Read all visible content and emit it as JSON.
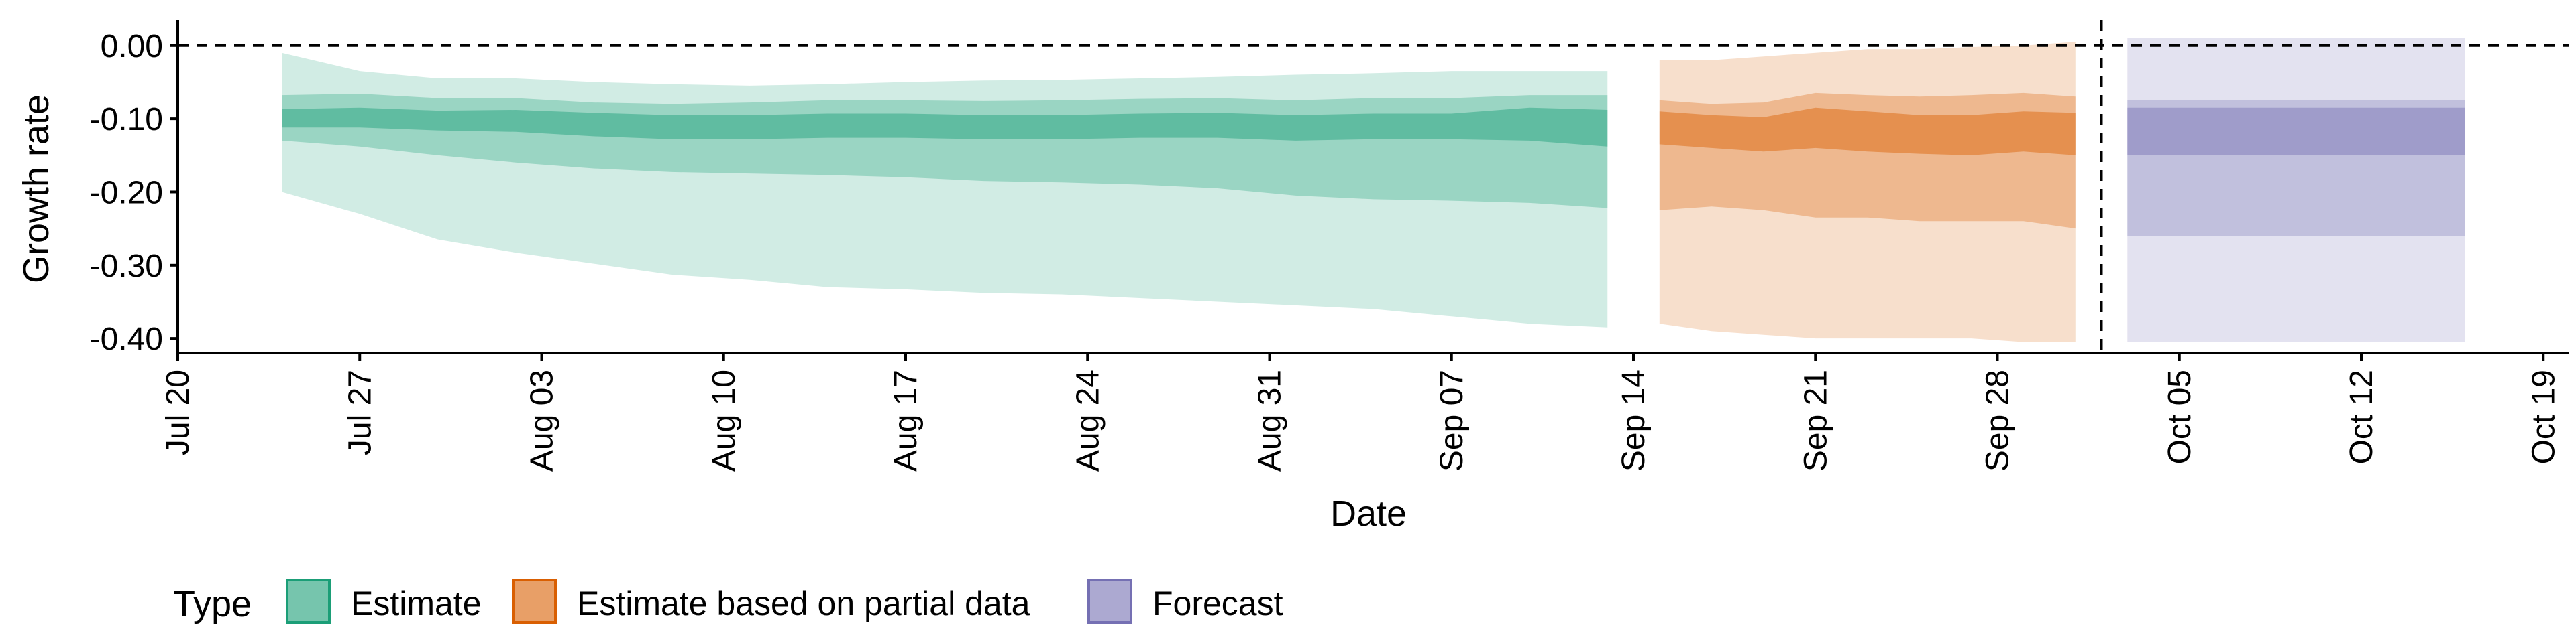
{
  "chart_data": {
    "type": "area",
    "title": "",
    "xlabel": "Date",
    "ylabel": "Growth rate",
    "ylim": [
      -0.42,
      0.03
    ],
    "xlim": [
      "2020-07-20",
      "2020-10-20"
    ],
    "x_ticks": [
      "Jul 20",
      "Jul 27",
      "Aug 03",
      "Aug 10",
      "Aug 17",
      "Aug 24",
      "Aug 31",
      "Sep 07",
      "Sep 14",
      "Sep 21",
      "Sep 28",
      "Oct 05",
      "Oct 12",
      "Oct 19"
    ],
    "y_ticks": [
      "0.00",
      "-0.10",
      "-0.20",
      "-0.30",
      "-0.40"
    ],
    "reference_lines": {
      "horizontal_y": 0.0,
      "vertical_x": "2020-10-02"
    },
    "legend": {
      "title": "Type",
      "position": "bottom-left",
      "entries": [
        "Estimate",
        "Estimate based on partial data",
        "Forecast"
      ]
    },
    "colors": {
      "Estimate": "#1b9e77",
      "Estimate based on partial data": "#d95f02",
      "Forecast": "#7570b3"
    },
    "grid": false,
    "series": [
      {
        "name": "Estimate",
        "color": "#1b9e77",
        "dates": [
          "2020-07-24",
          "2020-07-27",
          "2020-07-30",
          "2020-08-02",
          "2020-08-05",
          "2020-08-08",
          "2020-08-11",
          "2020-08-14",
          "2020-08-17",
          "2020-08-20",
          "2020-08-23",
          "2020-08-26",
          "2020-08-29",
          "2020-09-01",
          "2020-09-04",
          "2020-09-07",
          "2020-09-10",
          "2020-09-13"
        ],
        "median": [
          -0.1,
          -0.098,
          -0.102,
          -0.1,
          -0.105,
          -0.11,
          -0.11,
          -0.108,
          -0.107,
          -0.11,
          -0.11,
          -0.108,
          -0.106,
          -0.11,
          -0.108,
          -0.108,
          -0.107,
          -0.112
        ],
        "q25": [
          -0.087,
          -0.085,
          -0.089,
          -0.088,
          -0.092,
          -0.095,
          -0.095,
          -0.093,
          -0.093,
          -0.095,
          -0.095,
          -0.093,
          -0.092,
          -0.095,
          -0.093,
          -0.093,
          -0.085,
          -0.088
        ],
        "q75": [
          -0.112,
          -0.112,
          -0.116,
          -0.118,
          -0.124,
          -0.128,
          -0.128,
          -0.126,
          -0.126,
          -0.128,
          -0.128,
          -0.126,
          -0.126,
          -0.13,
          -0.128,
          -0.128,
          -0.13,
          -0.138
        ],
        "q10": [
          -0.068,
          -0.066,
          -0.072,
          -0.072,
          -0.078,
          -0.08,
          -0.078,
          -0.075,
          -0.075,
          -0.076,
          -0.075,
          -0.073,
          -0.072,
          -0.075,
          -0.072,
          -0.072,
          -0.068,
          -0.068
        ],
        "q90": [
          -0.13,
          -0.138,
          -0.15,
          -0.16,
          -0.168,
          -0.173,
          -0.175,
          -0.177,
          -0.18,
          -0.185,
          -0.187,
          -0.19,
          -0.195,
          -0.205,
          -0.21,
          -0.212,
          -0.215,
          -0.222
        ],
        "q5": [
          -0.01,
          -0.035,
          -0.045,
          -0.045,
          -0.05,
          -0.053,
          -0.055,
          -0.053,
          -0.05,
          -0.048,
          -0.047,
          -0.045,
          -0.043,
          -0.04,
          -0.038,
          -0.035,
          -0.035,
          -0.035
        ],
        "q95": [
          -0.2,
          -0.23,
          -0.265,
          -0.283,
          -0.298,
          -0.313,
          -0.32,
          -0.33,
          -0.333,
          -0.338,
          -0.34,
          -0.345,
          -0.35,
          -0.355,
          -0.36,
          -0.37,
          -0.38,
          -0.385
        ]
      },
      {
        "name": "Estimate based on partial data",
        "color": "#d95f02",
        "dates": [
          "2020-09-15",
          "2020-09-17",
          "2020-09-19",
          "2020-09-21",
          "2020-09-23",
          "2020-09-25",
          "2020-09-27",
          "2020-09-29",
          "2020-10-01"
        ],
        "median": [
          -0.11,
          -0.115,
          -0.118,
          -0.11,
          -0.115,
          -0.118,
          -0.118,
          -0.115,
          -0.118
        ],
        "q25": [
          -0.09,
          -0.095,
          -0.098,
          -0.085,
          -0.09,
          -0.095,
          -0.095,
          -0.09,
          -0.092
        ],
        "q75": [
          -0.135,
          -0.14,
          -0.145,
          -0.14,
          -0.145,
          -0.148,
          -0.15,
          -0.145,
          -0.15
        ],
        "q10": [
          -0.075,
          -0.08,
          -0.078,
          -0.065,
          -0.068,
          -0.07,
          -0.068,
          -0.065,
          -0.07
        ],
        "q90": [
          -0.225,
          -0.22,
          -0.225,
          -0.235,
          -0.235,
          -0.24,
          -0.24,
          -0.24,
          -0.25
        ],
        "q5": [
          -0.02,
          -0.02,
          -0.015,
          -0.01,
          -0.005,
          -0.005,
          -0.002,
          0.0,
          0.005
        ],
        "q95": [
          -0.38,
          -0.39,
          -0.395,
          -0.4,
          -0.4,
          -0.4,
          -0.4,
          -0.405,
          -0.405
        ]
      },
      {
        "name": "Forecast",
        "color": "#7570b3",
        "dates": [
          "2020-10-03",
          "2020-10-16"
        ],
        "median": [
          -0.11,
          -0.11
        ],
        "q25": [
          -0.085,
          -0.085
        ],
        "q75": [
          -0.15,
          -0.15
        ],
        "q10": [
          -0.075,
          -0.075
        ],
        "q90": [
          -0.26,
          -0.26
        ],
        "q5": [
          0.01,
          0.01
        ],
        "q95": [
          -0.405,
          -0.405
        ]
      }
    ]
  }
}
